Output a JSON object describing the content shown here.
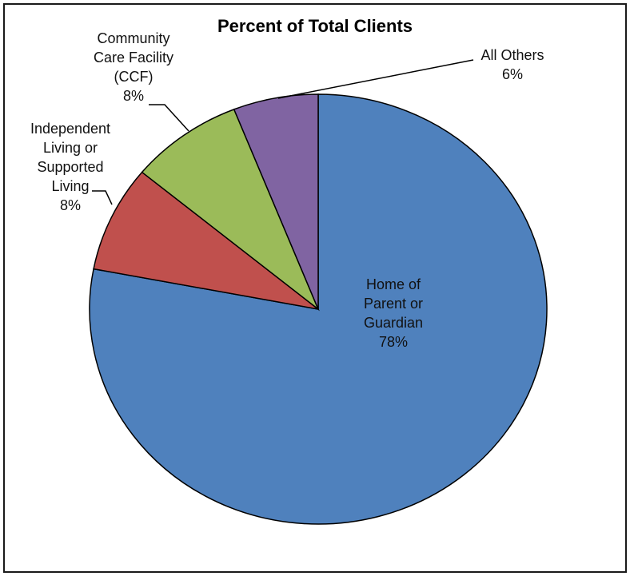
{
  "chart_data": {
    "type": "pie",
    "title": "Percent of Total Clients",
    "slices": [
      {
        "label_lines": [
          "Home of",
          "Parent or",
          "Guardian"
        ],
        "value": 78,
        "value_label": "78%",
        "color": "#4f81bd"
      },
      {
        "label_lines": [
          "Independent",
          "Living or",
          "Supported",
          "Living"
        ],
        "value": 8,
        "value_label": "8%",
        "color": "#c0504d"
      },
      {
        "label_lines": [
          "Community",
          "Care Facility",
          "(CCF)"
        ],
        "value": 8,
        "value_label": "8%",
        "color": "#9bbb59"
      },
      {
        "label_lines": [
          "All Others"
        ],
        "value": 6,
        "value_label": "6%",
        "color": "#8064a2"
      }
    ],
    "start_angle": "12 o'clock",
    "direction": "clockwise",
    "slice_border_color": "#000000"
  }
}
